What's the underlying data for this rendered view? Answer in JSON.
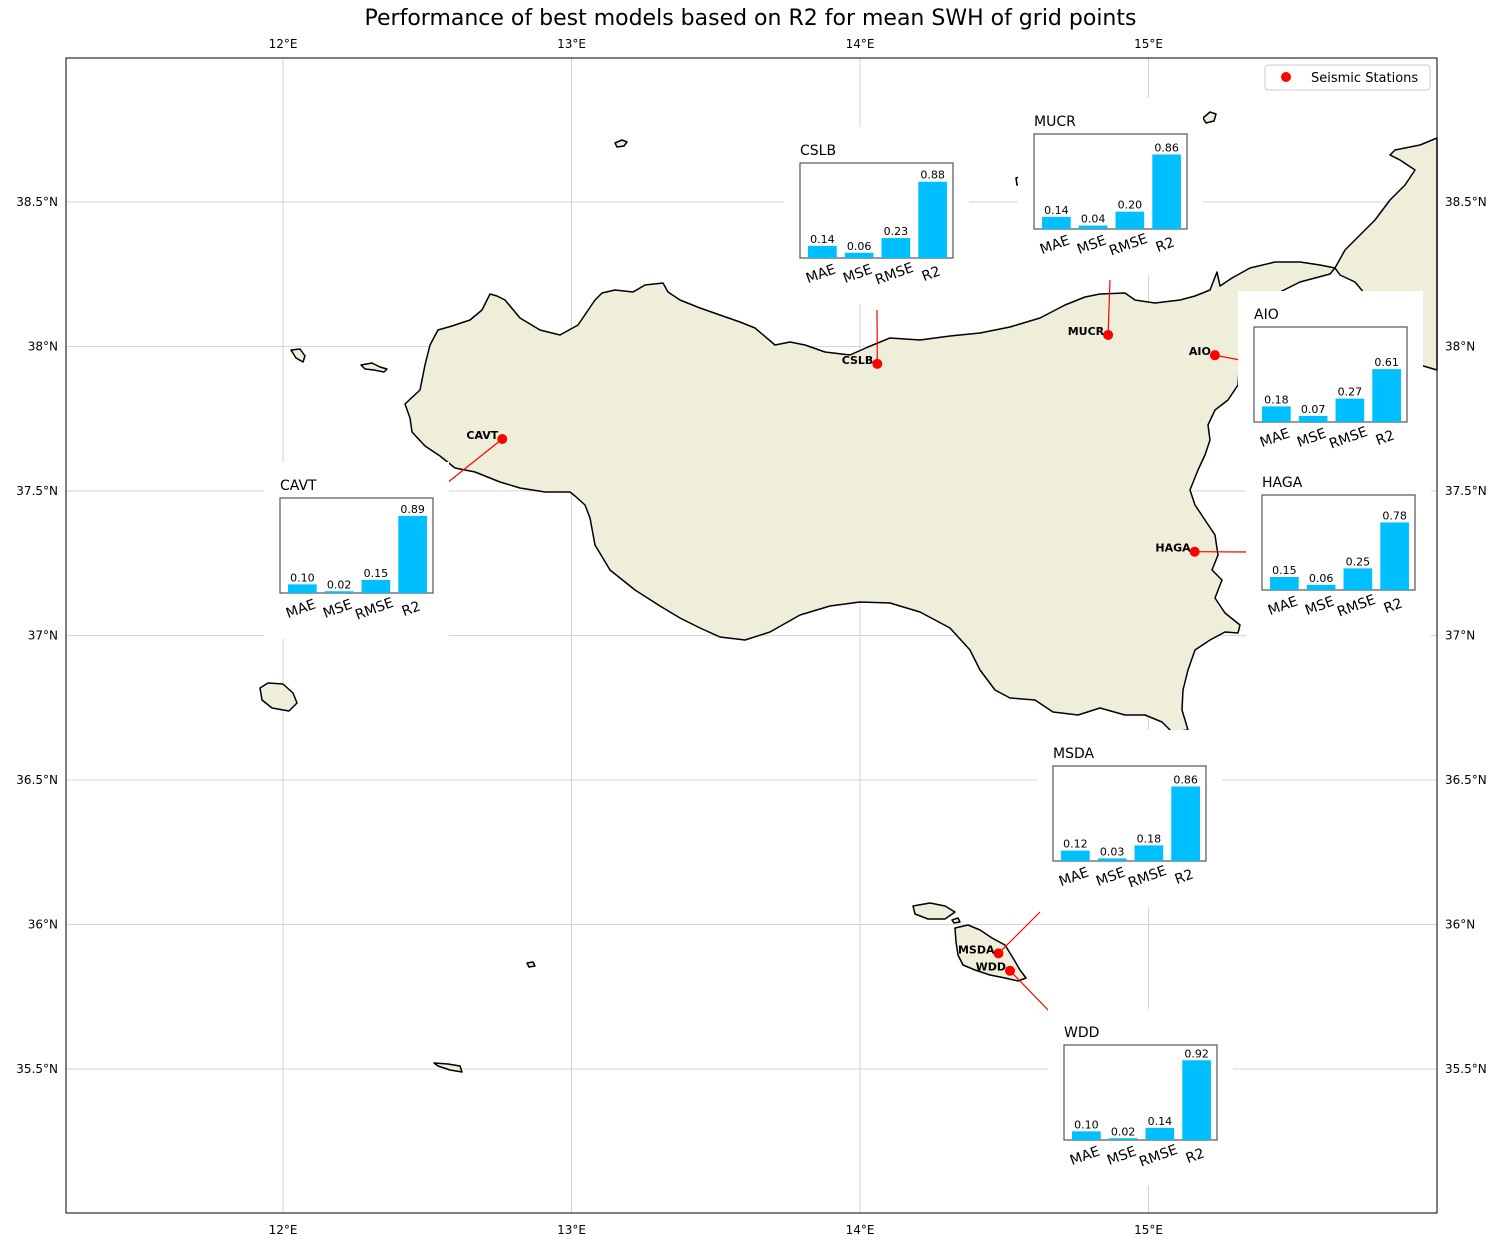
{
  "title": "Performance of best models based on R2 for mean SWH of grid points",
  "legend": {
    "label": "Seismic Stations",
    "position": "top-right"
  },
  "colors": {
    "land": "#efeedb",
    "bar": "#00bfff",
    "station": "#ff0000",
    "connector": "#ff0000",
    "grid": "#c8c8c8"
  },
  "axes": {
    "lon_ticks": [
      {
        "value": 12,
        "label": "12°E"
      },
      {
        "value": 13,
        "label": "13°E"
      },
      {
        "value": 14,
        "label": "14°E"
      },
      {
        "value": 15,
        "label": "15°E"
      }
    ],
    "lat_ticks": [
      {
        "value": 38.5,
        "label": "38.5°N"
      },
      {
        "value": 38.0,
        "label": "38°N"
      },
      {
        "value": 37.5,
        "label": "37.5°N"
      },
      {
        "value": 37.0,
        "label": "37°N"
      },
      {
        "value": 36.5,
        "label": "36.5°N"
      },
      {
        "value": 36.0,
        "label": "36°N"
      },
      {
        "value": 35.5,
        "label": "35.5°N"
      }
    ],
    "lon_range": [
      11.25,
      16.0
    ],
    "lat_range": [
      35.0,
      39.0
    ],
    "grid": true
  },
  "chart_data": {
    "type": "bar",
    "metrics": [
      "MAE",
      "MSE",
      "RMSE",
      "R2"
    ],
    "stations": [
      {
        "name": "CSLB",
        "lon": 14.06,
        "lat": 37.94,
        "values": [
          0.14,
          0.06,
          0.23,
          0.88
        ],
        "labels": [
          "0.14",
          "0.06",
          "0.23",
          "0.88"
        ]
      },
      {
        "name": "MUCR",
        "lon": 14.86,
        "lat": 38.04,
        "values": [
          0.14,
          0.04,
          0.2,
          0.86
        ],
        "labels": [
          "0.14",
          "0.04",
          "0.20",
          "0.86"
        ]
      },
      {
        "name": "AIO",
        "lon": 15.23,
        "lat": 37.97,
        "values": [
          0.18,
          0.07,
          0.27,
          0.61
        ],
        "labels": [
          "0.18",
          "0.07",
          "0.27",
          "0.61"
        ]
      },
      {
        "name": "CAVT",
        "lon": 12.76,
        "lat": 37.68,
        "values": [
          0.1,
          0.02,
          0.15,
          0.89
        ],
        "labels": [
          "0.10",
          "0.02",
          "0.15",
          "0.89"
        ]
      },
      {
        "name": "HAGA",
        "lon": 15.16,
        "lat": 37.29,
        "values": [
          0.15,
          0.06,
          0.25,
          0.78
        ],
        "labels": [
          "0.15",
          "0.06",
          "0.25",
          "0.78"
        ]
      },
      {
        "name": "MSDA",
        "lon": 14.48,
        "lat": 35.9,
        "values": [
          0.12,
          0.03,
          0.18,
          0.86
        ],
        "labels": [
          "0.12",
          "0.03",
          "0.18",
          "0.86"
        ]
      },
      {
        "name": "WDD",
        "lon": 14.52,
        "lat": 35.84,
        "values": [
          0.1,
          0.02,
          0.14,
          0.92
        ],
        "labels": [
          "0.10",
          "0.02",
          "0.14",
          "0.92"
        ]
      }
    ]
  }
}
